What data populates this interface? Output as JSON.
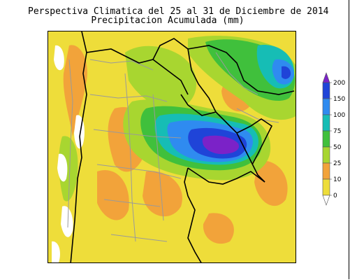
{
  "title": {
    "line1": "Perspectiva Climatica del 25 al 31 de Diciembre de 2014",
    "line2": "Precipitacion Acumulada (mm)"
  },
  "legend": {
    "levels": [
      {
        "label": "200",
        "color": "#7b22c8"
      },
      {
        "label": "150",
        "color": "#1f44d8"
      },
      {
        "label": "100",
        "color": "#2f8bf0"
      },
      {
        "label": "75",
        "color": "#16bdb5"
      },
      {
        "label": "50",
        "color": "#40c03c"
      },
      {
        "label": "25",
        "color": "#a8d630"
      },
      {
        "label": "10",
        "color": "#f2a33a"
      },
      {
        "label": "0",
        "color": "#eedd3a"
      }
    ]
  },
  "colors": {
    "base": "#eedd3a",
    "border_country": "#000000",
    "border_province": "#9a9a9a",
    "dry": "#ffffff"
  }
}
